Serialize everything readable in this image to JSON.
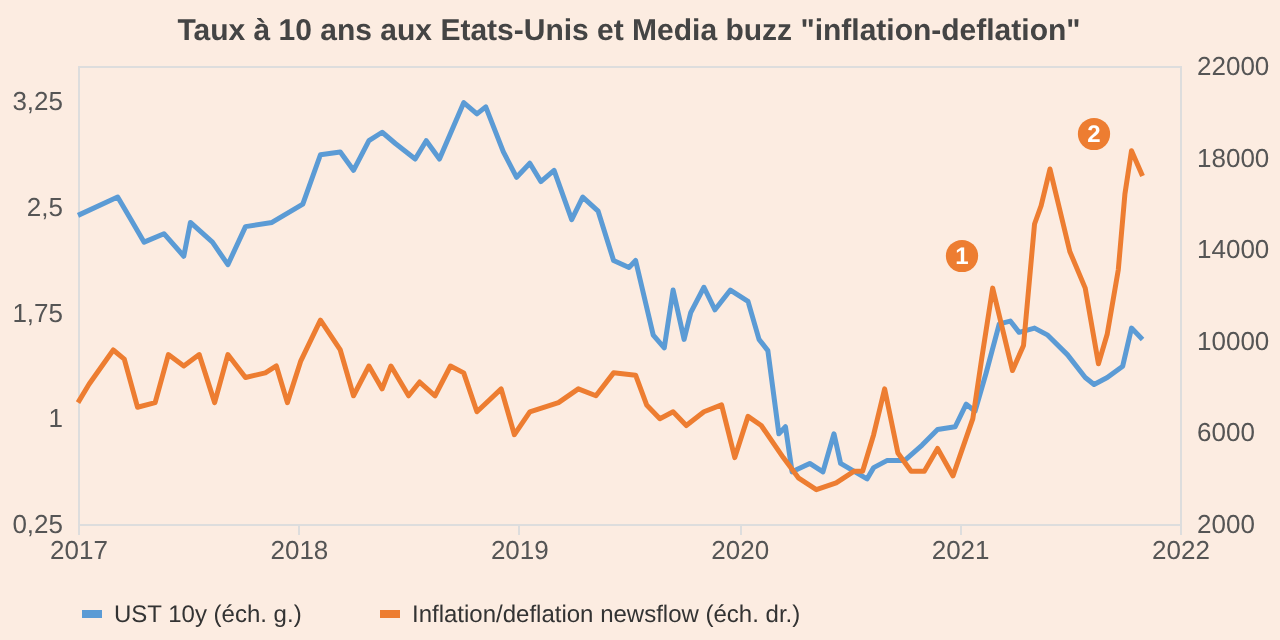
{
  "chart_data": {
    "type": "line",
    "title": "Taux à 10 ans aux Etats-Unis et Media buzz \"inflation-deflation\"",
    "xlim": [
      2017,
      2022
    ],
    "xticks": [
      2017,
      2018,
      2019,
      2020,
      2021,
      2022
    ],
    "ylim": [
      0.25,
      3.5
    ],
    "yticks": [
      {
        "value": 0.25,
        "label": "0,25"
      },
      {
        "value": 1,
        "label": "1"
      },
      {
        "value": 1.75,
        "label": "1,75"
      },
      {
        "value": 2.5,
        "label": "2,5"
      },
      {
        "value": 3.25,
        "label": "3,25"
      }
    ],
    "y2lim": [
      2000,
      22000
    ],
    "y2ticks": [
      2000,
      6000,
      10000,
      14000,
      18000,
      22000
    ],
    "grid": false,
    "legend": "bottom",
    "line_style": "solid",
    "marker": "none",
    "series": [
      {
        "name": "UST 10y (éch. g.)",
        "color": "#5b9bd5",
        "x": [
          2017.0,
          2017.18,
          2017.24,
          2017.3,
          2017.39,
          2017.48,
          2017.51,
          2017.61,
          2017.68,
          2017.76,
          2017.88,
          2018.02,
          2018.1,
          2018.19,
          2018.25,
          2018.32,
          2018.38,
          2018.44,
          2018.53,
          2018.58,
          2018.64,
          2018.75,
          2018.81,
          2018.85,
          2018.93,
          2018.99,
          2019.05,
          2019.1,
          2019.16,
          2019.24,
          2019.29,
          2019.36,
          2019.43,
          2019.5,
          2019.53,
          2019.61,
          2019.66,
          2019.7,
          2019.75,
          2019.78,
          2019.84,
          2019.89,
          2019.96,
          2020.04,
          2020.09,
          2020.13,
          2020.18,
          2020.21,
          2020.24,
          2020.32,
          2020.38,
          2020.43,
          2020.46,
          2020.58,
          2020.61,
          2020.67,
          2020.75,
          2020.83,
          2020.9,
          2020.98,
          2021.03,
          2021.07,
          2021.12,
          2021.18,
          2021.23,
          2021.27,
          2021.34,
          2021.4,
          2021.49,
          2021.57,
          2021.61,
          2021.67,
          2021.74,
          2021.78,
          2021.83
        ],
        "values": [
          2.44,
          2.57,
          2.41,
          2.25,
          2.31,
          2.15,
          2.39,
          2.25,
          2.09,
          2.36,
          2.39,
          2.52,
          2.87,
          2.89,
          2.76,
          2.97,
          3.03,
          2.95,
          2.84,
          2.97,
          2.84,
          3.24,
          3.16,
          3.21,
          2.89,
          2.71,
          2.81,
          2.68,
          2.76,
          2.41,
          2.57,
          2.47,
          2.12,
          2.07,
          2.12,
          1.59,
          1.5,
          1.91,
          1.56,
          1.75,
          1.93,
          1.77,
          1.91,
          1.83,
          1.56,
          1.48,
          0.89,
          0.94,
          0.62,
          0.68,
          0.62,
          0.89,
          0.68,
          0.57,
          0.65,
          0.7,
          0.7,
          0.81,
          0.92,
          0.94,
          1.1,
          1.05,
          1.32,
          1.67,
          1.69,
          1.61,
          1.64,
          1.59,
          1.45,
          1.29,
          1.24,
          1.29,
          1.37,
          1.64,
          1.56
        ]
      },
      {
        "name": "Inflation/deflation newsflow (éch. dr.)",
        "color": "#ed7d31",
        "axis": "y2",
        "x": [
          2017.0,
          2017.05,
          2017.16,
          2017.21,
          2017.27,
          2017.35,
          2017.41,
          2017.48,
          2017.55,
          2017.62,
          2017.68,
          2017.76,
          2017.85,
          2017.9,
          2017.95,
          2018.01,
          2018.1,
          2018.19,
          2018.25,
          2018.32,
          2018.38,
          2018.42,
          2018.5,
          2018.55,
          2018.62,
          2018.69,
          2018.75,
          2018.81,
          2018.92,
          2018.98,
          2019.05,
          2019.18,
          2019.27,
          2019.35,
          2019.43,
          2019.53,
          2019.58,
          2019.64,
          2019.7,
          2019.76,
          2019.84,
          2019.92,
          2019.98,
          2020.04,
          2020.1,
          2020.2,
          2020.27,
          2020.35,
          2020.44,
          2020.52,
          2020.56,
          2020.61,
          2020.66,
          2020.72,
          2020.78,
          2020.84,
          2020.9,
          2020.97,
          2021.06,
          2021.1,
          2021.15,
          2021.2,
          2021.24,
          2021.29,
          2021.34,
          2021.37,
          2021.41,
          2021.47,
          2021.5,
          2021.57,
          2021.63,
          2021.67,
          2021.72,
          2021.75,
          2021.78,
          2021.83
        ],
        "values": [
          7300,
          8100,
          9600,
          9200,
          7100,
          7300,
          9400,
          8900,
          9400,
          7300,
          9400,
          8400,
          8600,
          8900,
          7300,
          9100,
          10900,
          9600,
          7600,
          8900,
          7900,
          8900,
          7600,
          8200,
          7600,
          8900,
          8600,
          6900,
          7900,
          5900,
          6900,
          7300,
          7900,
          7600,
          8600,
          8500,
          7200,
          6600,
          6900,
          6300,
          6900,
          7200,
          4900,
          6700,
          6300,
          4900,
          4000,
          3500,
          3800,
          4300,
          4300,
          5900,
          7900,
          5100,
          4300,
          4300,
          5300,
          4100,
          6600,
          9200,
          12300,
          10300,
          8700,
          9800,
          15100,
          15900,
          17500,
          15100,
          13900,
          12300,
          9000,
          10300,
          13100,
          16400,
          18300,
          17200
        ]
      }
    ],
    "annotations": [
      "1",
      "2"
    ]
  }
}
